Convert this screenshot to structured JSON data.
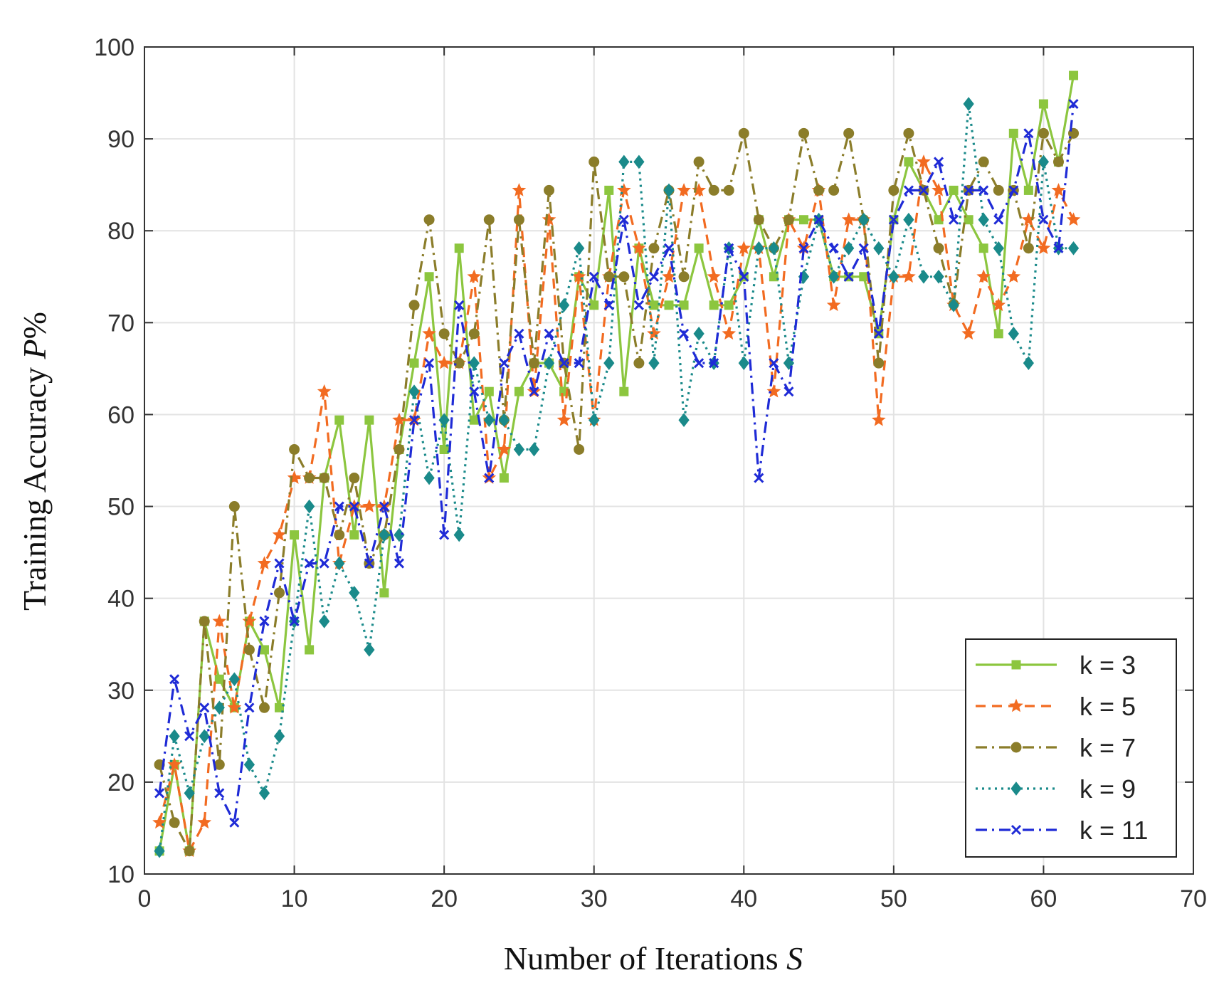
{
  "chart_data": {
    "type": "line",
    "title": "",
    "xlabel_main": "Number of Iterations ",
    "xlabel_var": "S",
    "ylabel_main": "Training Accuracy ",
    "ylabel_var": "P",
    "ylabel_suffix": "%",
    "xlim": [
      0,
      70
    ],
    "ylim": [
      10,
      100
    ],
    "xticks": [
      "0",
      "10",
      "20",
      "30",
      "40",
      "50",
      "60",
      "70"
    ],
    "yticks": [
      "10",
      "20",
      "30",
      "40",
      "50",
      "60",
      "70",
      "80",
      "90",
      "100"
    ],
    "grid": true,
    "legend_position": "bottom-right",
    "x": [
      1,
      2,
      3,
      4,
      5,
      6,
      7,
      8,
      9,
      10,
      11,
      12,
      13,
      14,
      15,
      16,
      17,
      18,
      19,
      20,
      21,
      22,
      23,
      24,
      25,
      26,
      27,
      28,
      29,
      30,
      31,
      32,
      33,
      34,
      35,
      36,
      37,
      38,
      39,
      40,
      41,
      42,
      43,
      44,
      45,
      46,
      47,
      48,
      49,
      50,
      51,
      52,
      53,
      54,
      55,
      56,
      57,
      58,
      59,
      60,
      61,
      62
    ],
    "series": [
      {
        "name": "k = 3",
        "color": "#8cc63f",
        "line_style": "solid",
        "marker": "square",
        "values": [
          12.5,
          21.9,
          12.5,
          37.5,
          31.2,
          28.1,
          37.5,
          34.4,
          28.1,
          46.9,
          34.4,
          53.1,
          59.4,
          46.9,
          59.4,
          40.6,
          56.2,
          65.6,
          75,
          56.2,
          78.1,
          59.4,
          62.5,
          53.1,
          62.5,
          65.6,
          65.6,
          62.5,
          75,
          71.9,
          84.4,
          62.5,
          78.1,
          71.9,
          71.9,
          71.9,
          78.1,
          71.9,
          71.9,
          75,
          81.2,
          75,
          81.2,
          81.2,
          81.2,
          75,
          75,
          75,
          68.8,
          81.2,
          87.5,
          84.4,
          81.2,
          84.4,
          81.2,
          78.1,
          68.8,
          90.6,
          84.4,
          93.8,
          87.5,
          96.9
        ]
      },
      {
        "name": "k = 5",
        "color": "#f26b21",
        "line_style": "dashed",
        "marker": "star",
        "values": [
          15.6,
          21.9,
          12.5,
          15.6,
          37.5,
          28.1,
          37.5,
          43.8,
          46.9,
          53.1,
          53.1,
          62.5,
          43.8,
          50,
          50,
          50,
          59.4,
          59.4,
          68.8,
          65.6,
          65.6,
          75,
          53.1,
          56.2,
          84.4,
          62.5,
          81.2,
          59.4,
          75,
          59.4,
          75,
          84.4,
          78.1,
          68.8,
          75,
          84.4,
          84.4,
          75,
          68.8,
          78.1,
          78.1,
          62.5,
          81.2,
          78.1,
          84.4,
          71.9,
          81.2,
          81.2,
          59.4,
          75,
          75,
          87.5,
          84.4,
          71.9,
          68.8,
          75,
          71.9,
          75,
          81.2,
          78.1,
          84.4,
          81.2
        ]
      },
      {
        "name": "k = 7",
        "color": "#8b7d2a",
        "line_style": "dashdot",
        "marker": "circle",
        "values": [
          21.9,
          15.6,
          12.5,
          37.5,
          21.9,
          50,
          34.4,
          28.1,
          40.6,
          56.2,
          53.1,
          53.1,
          46.9,
          53.1,
          43.8,
          46.9,
          56.2,
          71.9,
          81.2,
          68.8,
          65.6,
          68.8,
          81.2,
          59.4,
          81.2,
          65.6,
          84.4,
          65.6,
          56.2,
          87.5,
          75,
          75,
          65.6,
          78.1,
          84.4,
          75,
          87.5,
          84.4,
          84.4,
          90.6,
          81.2,
          78.1,
          81.2,
          90.6,
          84.4,
          84.4,
          90.6,
          81.2,
          65.6,
          84.4,
          90.6,
          84.4,
          78.1,
          72,
          84.4,
          87.5,
          84.4,
          84.4,
          78.1,
          90.6,
          87.5,
          90.6
        ]
      },
      {
        "name": "k = 9",
        "color": "#1a8a8a",
        "line_style": "dotted",
        "marker": "diamond",
        "values": [
          12.5,
          25,
          18.8,
          25,
          28.1,
          31.2,
          21.9,
          18.8,
          25,
          37.5,
          50,
          37.5,
          43.8,
          40.6,
          34.4,
          46.9,
          46.9,
          62.5,
          53.1,
          59.4,
          46.9,
          65.6,
          59.4,
          59.4,
          56.2,
          56.2,
          65.6,
          71.9,
          78.1,
          59.4,
          65.6,
          87.5,
          87.5,
          65.6,
          84.4,
          59.4,
          68.8,
          65.6,
          78.1,
          65.6,
          78.1,
          78.1,
          65.6,
          75,
          81.2,
          75,
          78.1,
          81.2,
          78.1,
          75,
          81.2,
          75,
          75,
          71.9,
          93.8,
          81.2,
          78.1,
          68.8,
          65.6,
          87.5,
          78.1,
          78.1
        ]
      },
      {
        "name": "k = 11",
        "color": "#1f2bd6",
        "line_style": "dashdot",
        "marker": "x",
        "values": [
          18.8,
          31.2,
          25,
          28.1,
          18.8,
          15.6,
          28.1,
          37.5,
          43.8,
          37.5,
          43.8,
          43.8,
          50,
          50,
          43.8,
          50,
          43.8,
          59.4,
          65.6,
          46.9,
          71.9,
          62.5,
          53.1,
          65.6,
          68.8,
          62.5,
          68.8,
          65.6,
          65.6,
          75,
          71.9,
          81.2,
          71.9,
          75,
          78.1,
          68.8,
          65.6,
          65.6,
          78.1,
          75,
          53.1,
          65.6,
          62.5,
          78.1,
          81.2,
          78.1,
          75,
          78.1,
          68.8,
          81.2,
          84.4,
          84.4,
          87.5,
          81.2,
          84.4,
          84.4,
          81.2,
          84.4,
          90.6,
          81.2,
          78.1,
          93.8
        ]
      }
    ]
  }
}
